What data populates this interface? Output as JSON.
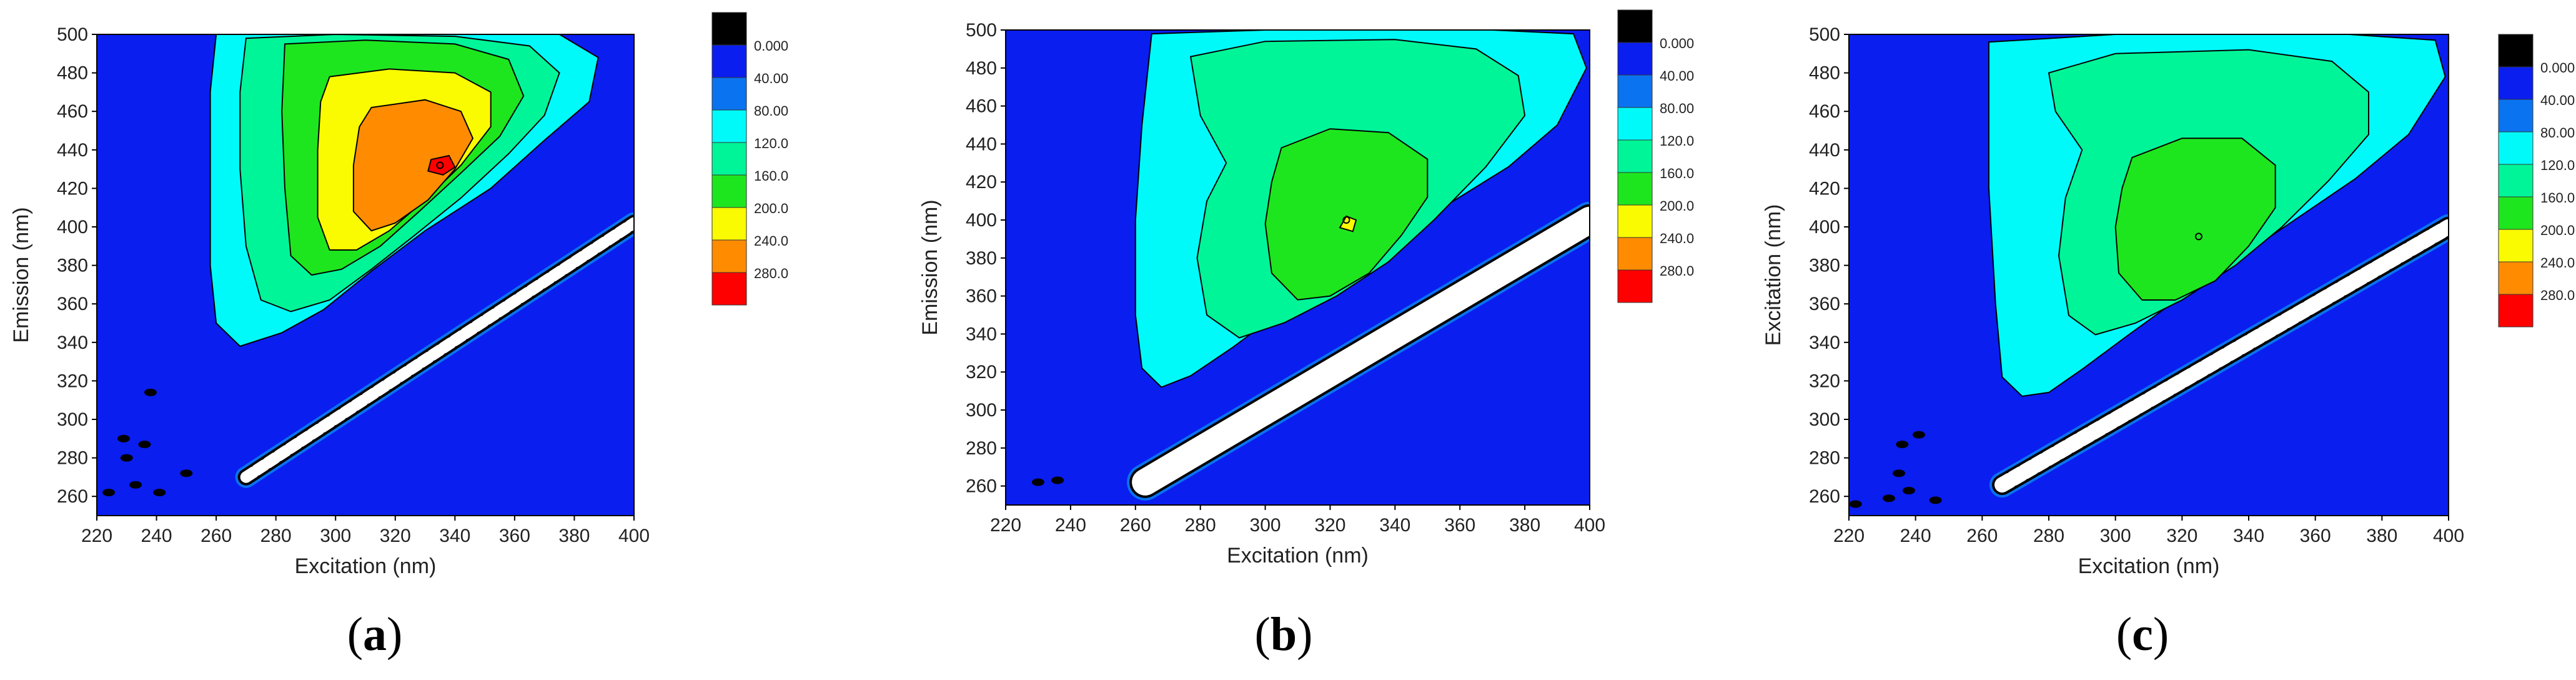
{
  "palette": {
    "background": "#0a1ef0",
    "levels": [
      "#000000",
      "#0a1ef0",
      "#0a73f0",
      "#00fafa",
      "#00f598",
      "#1ee61e",
      "#fafa00",
      "#ff8c00",
      "#ff0000"
    ],
    "scatter_band": "#ffffff",
    "outline": "#000000"
  },
  "legend": {
    "labels": [
      "0.000",
      "40.00",
      "80.00",
      "120.0",
      "160.0",
      "200.0",
      "240.0",
      "280.0"
    ]
  },
  "chart_data": [
    {
      "type": "heatmap",
      "panel_label": "a",
      "xlabel": "Excitation (nm)",
      "ylabel": "Emission (nm)",
      "xlim": [
        220,
        400
      ],
      "ylim": [
        250,
        500
      ],
      "x_ticks": [
        "220",
        "240",
        "260",
        "280",
        "300",
        "320",
        "340",
        "360",
        "380",
        "400"
      ],
      "y_ticks": [
        "260",
        "280",
        "300",
        "320",
        "340",
        "360",
        "380",
        "400",
        "420",
        "440",
        "460",
        "480",
        "500"
      ],
      "legend": [
        "0.000",
        "40.00",
        "80.00",
        "120.0",
        "160.0",
        "200.0",
        "240.0",
        "280.0"
      ],
      "peak": {
        "excitation": 335,
        "emission": 432,
        "intensity": 280
      },
      "contours": [
        {
          "level": 80,
          "points": [
            [
              260,
              500
            ],
            [
              283,
              500
            ],
            [
              330,
              500
            ],
            [
              375,
              500
            ],
            [
              388,
              488
            ],
            [
              385,
              465
            ],
            [
              370,
              445
            ],
            [
              352,
              420
            ],
            [
              330,
              398
            ],
            [
              312,
              377
            ],
            [
              296,
              357
            ],
            [
              282,
              345
            ],
            [
              268,
              338
            ],
            [
              260,
              350
            ],
            [
              258,
              380
            ],
            [
              258,
              430
            ],
            [
              258,
              470
            ]
          ]
        },
        {
          "level": 120,
          "points": [
            [
              270,
              498
            ],
            [
              300,
              500
            ],
            [
              340,
              499
            ],
            [
              365,
              494
            ],
            [
              375,
              480
            ],
            [
              370,
              458
            ],
            [
              358,
              438
            ],
            [
              342,
              415
            ],
            [
              326,
              395
            ],
            [
              312,
              378
            ],
            [
              298,
              362
            ],
            [
              285,
              356
            ],
            [
              275,
              362
            ],
            [
              270,
              390
            ],
            [
              268,
              430
            ],
            [
              268,
              470
            ]
          ]
        },
        {
          "level": 160,
          "points": [
            [
              283,
              495
            ],
            [
              310,
              497
            ],
            [
              340,
              495
            ],
            [
              358,
              487
            ],
            [
              363,
              468
            ],
            [
              355,
              447
            ],
            [
              342,
              428
            ],
            [
              328,
              408
            ],
            [
              315,
              390
            ],
            [
              302,
              378
            ],
            [
              292,
              375
            ],
            [
              285,
              385
            ],
            [
              283,
              420
            ],
            [
              282,
              460
            ]
          ]
        },
        {
          "level": 200,
          "points": [
            [
              298,
              478
            ],
            [
              318,
              482
            ],
            [
              340,
              480
            ],
            [
              352,
              470
            ],
            [
              352,
              452
            ],
            [
              342,
              432
            ],
            [
              330,
              414
            ],
            [
              318,
              398
            ],
            [
              307,
              388
            ],
            [
              298,
              388
            ],
            [
              294,
              405
            ],
            [
              294,
              440
            ],
            [
              295,
              465
            ]
          ]
        },
        {
          "level": 240,
          "points": [
            [
              312,
              462
            ],
            [
              330,
              466
            ],
            [
              342,
              460
            ],
            [
              346,
              446
            ],
            [
              340,
              430
            ],
            [
              331,
              414
            ],
            [
              320,
              402
            ],
            [
              312,
              398
            ],
            [
              306,
              408
            ],
            [
              306,
              432
            ],
            [
              308,
              452
            ]
          ]
        },
        {
          "level": 280,
          "points": [
            [
              332,
              435
            ],
            [
              338,
              437
            ],
            [
              340,
              431
            ],
            [
              336,
              427
            ],
            [
              331,
              429
            ]
          ]
        }
      ],
      "scatter_ridge": {
        "start": [
          270,
          270
        ],
        "end": [
          400,
          402
        ],
        "width_nm": 6,
        "style": "dashed"
      },
      "noise": [
        [
          224,
          262
        ],
        [
          233,
          266
        ],
        [
          241,
          262
        ],
        [
          236,
          287
        ],
        [
          229,
          290
        ],
        [
          238,
          314
        ],
        [
          250,
          272
        ],
        [
          230,
          280
        ]
      ]
    },
    {
      "type": "heatmap",
      "panel_label": "b",
      "xlabel": "Excitation (nm)",
      "ylabel": "Emission (nm)",
      "xlim": [
        220,
        400
      ],
      "ylim": [
        250,
        500
      ],
      "x_ticks": [
        "220",
        "240",
        "260",
        "280",
        "300",
        "320",
        "340",
        "360",
        "380",
        "400"
      ],
      "y_ticks": [
        "260",
        "280",
        "300",
        "320",
        "340",
        "360",
        "380",
        "400",
        "420",
        "440",
        "460",
        "480",
        "500"
      ],
      "legend": [
        "0.000",
        "40.00",
        "80.00",
        "120.0",
        "160.0",
        "200.0",
        "240.0",
        "280.0"
      ],
      "peak": {
        "excitation": 325,
        "emission": 400,
        "intensity": 190
      },
      "contours": [
        {
          "level": 80,
          "points": [
            [
              265,
              498
            ],
            [
              300,
              500
            ],
            [
              340,
              500
            ],
            [
              370,
              500
            ],
            [
              395,
              498
            ],
            [
              399,
              480
            ],
            [
              390,
              450
            ],
            [
              375,
              428
            ],
            [
              358,
              410
            ],
            [
              340,
              392
            ],
            [
              322,
              372
            ],
            [
              305,
              352
            ],
            [
              290,
              333
            ],
            [
              277,
              318
            ],
            [
              268,
              312
            ],
            [
              262,
              322
            ],
            [
              260,
              350
            ],
            [
              260,
              400
            ],
            [
              262,
              450
            ]
          ]
        },
        {
          "level": 120,
          "points": [
            [
              277,
              486
            ],
            [
              300,
              494
            ],
            [
              340,
              495
            ],
            [
              365,
              490
            ],
            [
              378,
              476
            ],
            [
              380,
              455
            ],
            [
              368,
              428
            ],
            [
              352,
              400
            ],
            [
              338,
              378
            ],
            [
              322,
              360
            ],
            [
              306,
              346
            ],
            [
              292,
              338
            ],
            [
              282,
              350
            ],
            [
              279,
              380
            ],
            [
              282,
              410
            ],
            [
              288,
              430
            ],
            [
              280,
              455
            ]
          ]
        },
        {
          "level": 160,
          "points": [
            [
              305,
              438
            ],
            [
              320,
              448
            ],
            [
              338,
              446
            ],
            [
              350,
              432
            ],
            [
              350,
              412
            ],
            [
              342,
              392
            ],
            [
              332,
              372
            ],
            [
              320,
              360
            ],
            [
              310,
              358
            ],
            [
              302,
              372
            ],
            [
              300,
              398
            ],
            [
              302,
              420
            ]
          ]
        },
        {
          "level": 200,
          "points": [
            [
              325,
              402
            ],
            [
              328,
              400
            ],
            [
              327,
              394
            ],
            [
              323,
              396
            ]
          ]
        }
      ],
      "scatter_ridge": {
        "start": [
          263,
          262
        ],
        "end": [
          400,
          400
        ],
        "width_nm": 14,
        "style": "solid"
      },
      "noise": [
        [
          230,
          262
        ],
        [
          236,
          263
        ]
      ]
    },
    {
      "type": "heatmap",
      "panel_label": "c",
      "xlabel": "Excitation (nm)",
      "ylabel": "Excitation (nm)",
      "xlim": [
        220,
        400
      ],
      "ylim": [
        250,
        500
      ],
      "x_ticks": [
        "220",
        "240",
        "260",
        "280",
        "300",
        "320",
        "340",
        "360",
        "380",
        "400"
      ],
      "y_ticks": [
        "260",
        "280",
        "300",
        "320",
        "340",
        "360",
        "380",
        "400",
        "420",
        "440",
        "460",
        "480",
        "500"
      ],
      "legend": [
        "0.000",
        "40.00",
        "80.00",
        "120.0",
        "160.0",
        "200.0",
        "240.0",
        "280.0"
      ],
      "peak": {
        "excitation": 325,
        "emission": 395,
        "intensity": 190
      },
      "contours": [
        {
          "level": 80,
          "points": [
            [
              262,
              496
            ],
            [
              300,
              500
            ],
            [
              340,
              500
            ],
            [
              370,
              500
            ],
            [
              396,
              497
            ],
            [
              399,
              478
            ],
            [
              388,
              448
            ],
            [
              372,
              425
            ],
            [
              355,
              405
            ],
            [
              338,
              385
            ],
            [
              320,
              364
            ],
            [
              304,
              344
            ],
            [
              290,
              326
            ],
            [
              280,
              314
            ],
            [
              272,
              312
            ],
            [
              266,
              322
            ],
            [
              264,
              360
            ],
            [
              262,
              420
            ],
            [
              262,
              460
            ]
          ]
        },
        {
          "level": 120,
          "points": [
            [
              280,
              480
            ],
            [
              300,
              490
            ],
            [
              340,
              492
            ],
            [
              365,
              486
            ],
            [
              376,
              470
            ],
            [
              376,
              448
            ],
            [
              364,
              424
            ],
            [
              350,
              400
            ],
            [
              336,
              380
            ],
            [
              320,
              362
            ],
            [
              306,
              350
            ],
            [
              294,
              344
            ],
            [
              286,
              354
            ],
            [
              283,
              385
            ],
            [
              285,
              415
            ],
            [
              290,
              440
            ],
            [
              282,
              460
            ]
          ]
        },
        {
          "level": 160,
          "points": [
            [
              305,
              436
            ],
            [
              320,
              446
            ],
            [
              338,
              446
            ],
            [
              348,
              432
            ],
            [
              348,
              410
            ],
            [
              340,
              390
            ],
            [
              330,
              372
            ],
            [
              318,
              362
            ],
            [
              308,
              362
            ],
            [
              301,
              376
            ],
            [
              300,
              400
            ],
            [
              302,
              420
            ]
          ]
        }
      ],
      "scatter_ridge": {
        "start": [
          266,
          266
        ],
        "end": [
          400,
          400
        ],
        "width_nm": 8,
        "style": "dashed"
      },
      "noise": [
        [
          222,
          256
        ],
        [
          232,
          259
        ],
        [
          238,
          263
        ],
        [
          236,
          287
        ],
        [
          241,
          292
        ],
        [
          246,
          258
        ],
        [
          235,
          272
        ]
      ]
    }
  ]
}
